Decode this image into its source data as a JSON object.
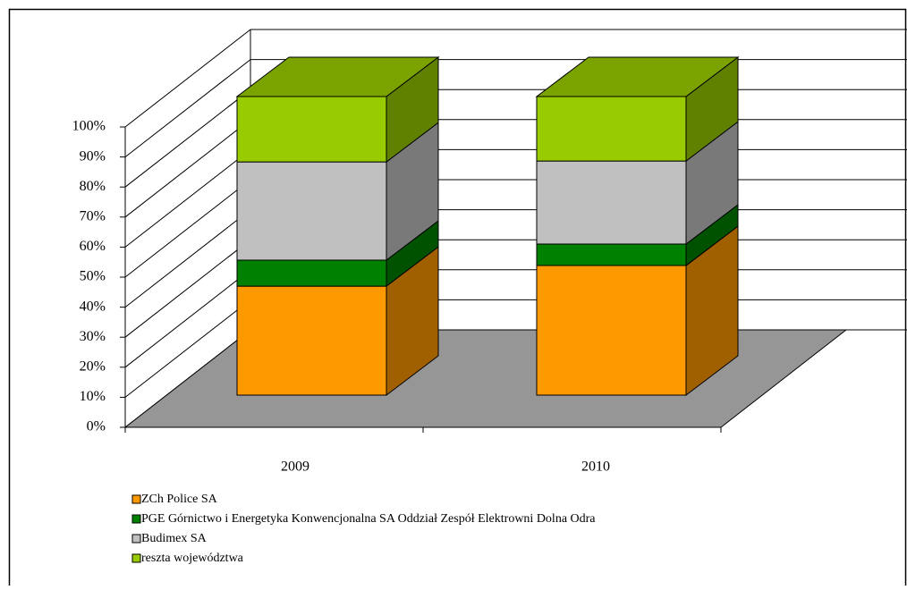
{
  "chart_data": {
    "type": "bar3d_stacked",
    "categories": [
      "2009",
      "2010"
    ],
    "series": [
      {
        "name": "ZCh Police SA",
        "color": "#ff9900",
        "values": [
          36.5,
          43.4
        ]
      },
      {
        "name": "PGE Górnictwo i Energetyka Konwencjonalna SA Oddział Zespół Elektrowni Dolna Odra",
        "color": "#008000",
        "values": [
          8.7,
          7.2
        ]
      },
      {
        "name": "Budimex SA",
        "color": "#c0c0c0",
        "values": [
          32.9,
          27.8
        ]
      },
      {
        "name": "reszta województwa",
        "color": "#99cc00",
        "values": [
          21.9,
          21.6
        ]
      }
    ],
    "ylim": [
      0,
      100
    ],
    "yticks": [
      {
        "value": 0,
        "label": "0%"
      },
      {
        "value": 10,
        "label": "10%"
      },
      {
        "value": 20,
        "label": "20%"
      },
      {
        "value": 30,
        "label": "30%"
      },
      {
        "value": 40,
        "label": "40%"
      },
      {
        "value": 50,
        "label": "50%"
      },
      {
        "value": 60,
        "label": "60%"
      },
      {
        "value": 70,
        "label": "70%"
      },
      {
        "value": 80,
        "label": "80%"
      },
      {
        "value": 90,
        "label": "90%"
      },
      {
        "value": 100,
        "label": "100%"
      }
    ],
    "grid": true,
    "legend": "bottom-left"
  }
}
